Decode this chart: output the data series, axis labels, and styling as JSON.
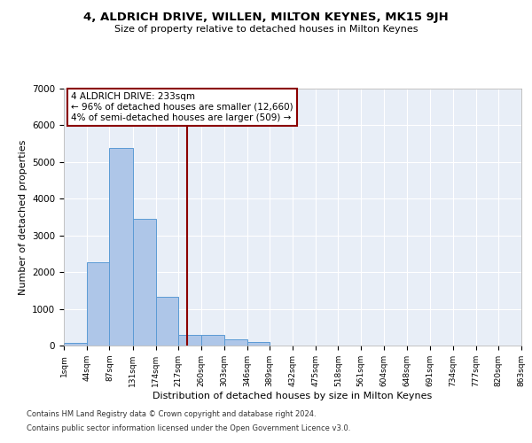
{
  "title": "4, ALDRICH DRIVE, WILLEN, MILTON KEYNES, MK15 9JH",
  "subtitle": "Size of property relative to detached houses in Milton Keynes",
  "xlabel": "Distribution of detached houses by size in Milton Keynes",
  "ylabel": "Number of detached properties",
  "footnote1": "Contains HM Land Registry data © Crown copyright and database right 2024.",
  "footnote2": "Contains public sector information licensed under the Open Government Licence v3.0.",
  "annotation_line1": "4 ALDRICH DRIVE: 233sqm",
  "annotation_line2": "← 96% of detached houses are smaller (12,660)",
  "annotation_line3": "4% of semi-detached houses are larger (509) →",
  "property_value": 233,
  "bar_edges": [
    1,
    44,
    87,
    131,
    174,
    217,
    260,
    303,
    346,
    389,
    432,
    475,
    518,
    561,
    604,
    648,
    691,
    734,
    777,
    820,
    863
  ],
  "bar_heights": [
    75,
    2270,
    5380,
    3450,
    1320,
    290,
    290,
    160,
    95,
    0,
    0,
    0,
    0,
    0,
    0,
    0,
    0,
    0,
    0,
    0
  ],
  "bar_color": "#aec6e8",
  "bar_edgecolor": "#5b9bd5",
  "vline_color": "#8b0000",
  "vline_x": 233,
  "annotation_box_color": "#8b0000",
  "ylim": [
    0,
    7000
  ],
  "background_color": "#e8eef7",
  "grid_color": "#ffffff",
  "tick_labels": [
    "1sqm",
    "44sqm",
    "87sqm",
    "131sqm",
    "174sqm",
    "217sqm",
    "260sqm",
    "303sqm",
    "346sqm",
    "389sqm",
    "432sqm",
    "475sqm",
    "518sqm",
    "561sqm",
    "604sqm",
    "648sqm",
    "691sqm",
    "734sqm",
    "777sqm",
    "820sqm",
    "863sqm"
  ]
}
